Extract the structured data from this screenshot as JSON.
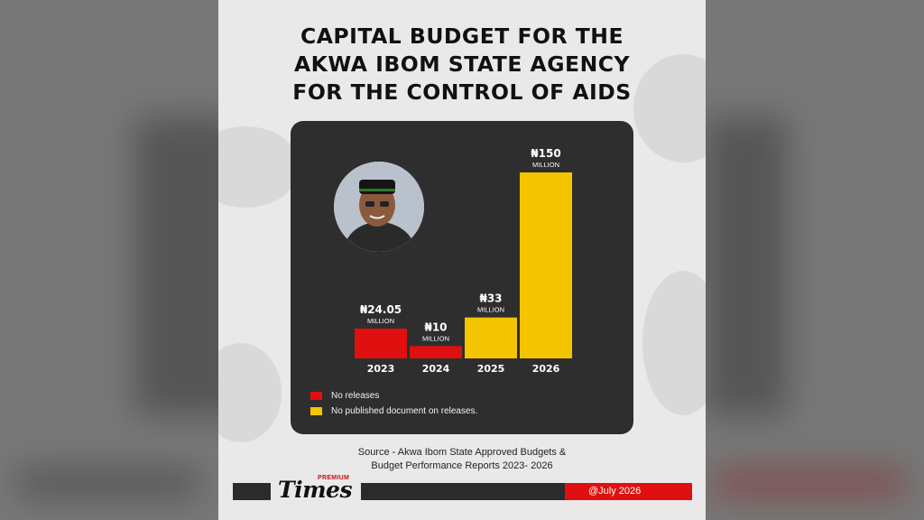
{
  "title_lines": [
    "CAPITAL BUDGET FOR THE",
    "AKWA IBOM STATE AGENCY",
    "FOR THE CONTROL OF AIDS"
  ],
  "chart_data": {
    "type": "bar",
    "categories": [
      "2023",
      "2024",
      "2025",
      "2026"
    ],
    "values": [
      24.05,
      10,
      33,
      150
    ],
    "value_labels": [
      "₦24.05",
      "₦10",
      "₦33",
      "₦150"
    ],
    "unit_label": "MILLION",
    "bar_colors": [
      "#e01010",
      "#e01010",
      "#f5c400",
      "#f5c400"
    ],
    "legend": [
      {
        "label": "No releases",
        "color": "#e01010"
      },
      {
        "label": "No published document on releases.",
        "color": "#f5c400"
      }
    ],
    "ylim": [
      0,
      150
    ],
    "grid": false
  },
  "source": {
    "line1": "Source - Akwa Ibom State Approved Budgets &",
    "line2": "Budget Performance Reports 2023- 2026"
  },
  "footer": {
    "logo_premium": "PREMIUM",
    "logo_times": "Times",
    "date": "@July 2026"
  }
}
